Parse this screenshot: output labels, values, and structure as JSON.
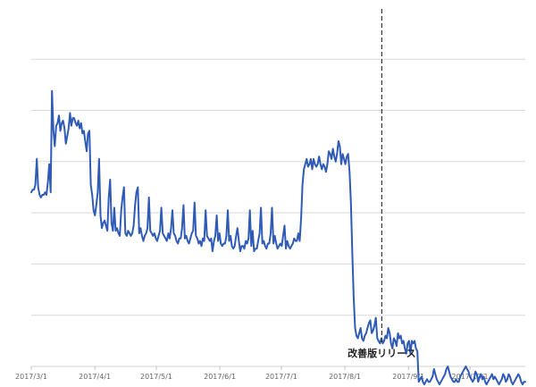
{
  "chart_data": {
    "type": "line",
    "x_start": "2017-03-01",
    "x_end": "2017-10-28",
    "x_ticks": [
      "2017/3/1",
      "2017/4/1",
      "2017/5/1",
      "2017/6/1",
      "2017/7/1",
      "2017/8/1",
      "2017/9/1",
      "2017/10/1"
    ],
    "ylim": [
      0,
      7
    ],
    "gridlines": [
      1,
      2,
      3,
      4,
      5,
      6
    ],
    "grid": true,
    "series": [
      {
        "color": "#2F5BB7",
        "values": [
          3.4,
          3.45,
          3.45,
          3.55,
          4.05,
          3.5,
          3.35,
          3.3,
          3.35,
          3.35,
          3.4,
          3.35,
          3.6,
          3.95,
          3.4,
          5.38,
          4.6,
          4.3,
          4.7,
          4.75,
          4.9,
          4.6,
          4.75,
          4.8,
          4.65,
          4.35,
          4.5,
          4.65,
          4.95,
          4.7,
          4.85,
          4.85,
          4.75,
          4.7,
          4.8,
          4.65,
          4.75,
          4.55,
          4.6,
          4.4,
          4.2,
          4.55,
          4.6,
          3.55,
          3.35,
          3.05,
          2.95,
          3.15,
          3.4,
          4.05,
          2.95,
          2.7,
          2.8,
          2.85,
          2.75,
          2.65,
          3.3,
          3.65,
          2.8,
          2.65,
          3.1,
          2.65,
          2.7,
          2.6,
          2.55,
          3.05,
          3.3,
          3.5,
          2.6,
          2.55,
          2.65,
          2.6,
          2.55,
          2.6,
          2.75,
          3.15,
          3.4,
          3.5,
          2.6,
          2.7,
          2.55,
          2.45,
          2.55,
          2.6,
          2.7,
          3.3,
          2.65,
          2.6,
          2.55,
          2.6,
          2.5,
          2.45,
          2.55,
          2.65,
          3.1,
          2.6,
          2.55,
          2.5,
          2.45,
          2.6,
          2.5,
          2.7,
          3.05,
          2.6,
          2.55,
          2.45,
          2.4,
          2.5,
          2.5,
          2.7,
          3.15,
          2.5,
          2.55,
          2.45,
          2.4,
          2.5,
          2.6,
          2.65,
          3.2,
          2.55,
          2.5,
          2.4,
          2.45,
          2.35,
          2.5,
          2.45,
          3.05,
          2.55,
          2.5,
          2.45,
          2.5,
          2.25,
          2.45,
          2.55,
          2.95,
          2.45,
          2.6,
          2.4,
          2.35,
          2.4,
          2.4,
          2.55,
          3.05,
          2.45,
          2.55,
          2.35,
          2.3,
          2.35,
          2.55,
          2.7,
          2.45,
          2.25,
          2.35,
          2.35,
          2.3,
          2.45,
          2.4,
          2.5,
          3.05,
          2.35,
          2.65,
          2.25,
          2.3,
          2.3,
          2.45,
          2.6,
          3.1,
          2.4,
          2.45,
          2.35,
          2.3,
          2.4,
          2.4,
          2.6,
          3.1,
          2.4,
          2.55,
          2.4,
          2.3,
          2.35,
          2.4,
          2.35,
          2.55,
          2.75,
          2.3,
          2.45,
          2.35,
          2.3,
          2.35,
          2.4,
          2.5,
          2.45,
          2.45,
          2.6,
          2.45,
          2.9,
          3.55,
          3.85,
          3.95,
          4.05,
          3.9,
          3.95,
          4.05,
          3.85,
          4.05,
          3.95,
          3.9,
          3.95,
          4.1,
          3.95,
          3.85,
          3.95,
          3.9,
          3.8,
          3.95,
          4.2,
          4.15,
          4.05,
          4.25,
          4.1,
          4.0,
          4.15,
          4.4,
          4.3,
          3.95,
          4.15,
          4.05,
          3.95,
          4.1,
          4.15,
          3.8,
          3.2,
          2.2,
          1.35,
          0.75,
          0.6,
          0.55,
          0.65,
          0.75,
          0.55,
          0.5,
          0.6,
          0.65,
          0.75,
          0.85,
          0.9,
          0.65,
          0.7,
          0.8,
          0.95,
          0.55,
          0.5,
          0.45,
          0.55,
          0.45,
          0.5,
          0.6,
          0.55,
          0.75,
          0.65,
          0.45,
          0.35,
          0.55,
          0.5,
          0.4,
          0.65,
          0.55,
          0.6,
          0.45,
          0.5,
          0.35,
          0.25,
          0.45,
          0.5,
          0.25,
          0.5,
          0.45,
          0.5,
          0.35,
          0.3,
          -0.3,
          -0.25,
          -0.2,
          -0.3,
          -0.35,
          -0.3,
          -0.25,
          -0.3,
          -0.3,
          -0.25,
          -0.2,
          -0.05,
          -0.15,
          -0.25,
          -0.3,
          -0.35,
          -0.3,
          -0.25,
          -0.2,
          -0.15,
          -0.05,
          0.0,
          -0.1,
          -0.2,
          -0.25,
          -0.3,
          -0.3,
          -0.25,
          -0.3,
          -0.3,
          -0.2,
          -0.15,
          -0.1,
          -0.05,
          0.0,
          -0.05,
          -0.1,
          -0.2,
          -0.25,
          -0.3,
          -0.25,
          -0.1,
          -0.15,
          -0.3,
          -0.2,
          -0.15,
          -0.25,
          -0.2,
          -0.3,
          -0.35,
          -0.3,
          -0.25,
          -0.2,
          -0.15,
          -0.25,
          -0.2,
          -0.25,
          -0.3,
          -0.35,
          -0.3,
          -0.25,
          -0.15,
          -0.2,
          -0.3,
          -0.25,
          -0.15,
          -0.2,
          -0.3,
          -0.35,
          -0.3,
          -0.25,
          -0.2,
          -0.15,
          -0.2,
          -0.3,
          -0.35,
          -0.3,
          -0.3
        ]
      }
    ],
    "annotations": [
      {
        "type": "vline",
        "x": "2017-08-19",
        "label": "改善版リリース",
        "style": "dashed",
        "color": "#333333"
      }
    ]
  }
}
